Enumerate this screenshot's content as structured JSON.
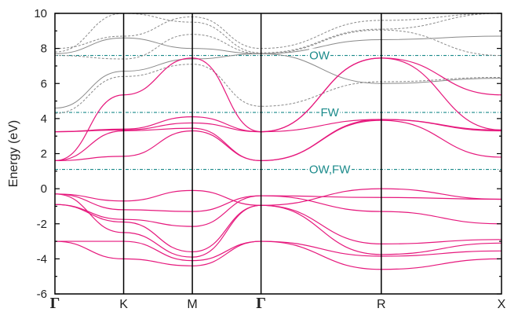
{
  "chart_data": {
    "type": "line",
    "xlabel": "",
    "ylabel": "Energy (eV)",
    "ylim": [
      -6,
      10
    ],
    "yticks": [
      "10",
      "8",
      "6",
      "4",
      "2",
      "0",
      "-2",
      "-4",
      "-6"
    ],
    "kpoints": [
      {
        "label": "Γ",
        "x": 0
      },
      {
        "label": "K",
        "x": 1
      },
      {
        "label": "M",
        "x": 2
      },
      {
        "label": "Γ",
        "x": 3
      },
      {
        "label": "R",
        "x": 4.75
      },
      {
        "label": "X",
        "x": 6.5
      }
    ],
    "colors": {
      "valence_conduction": "#e6197d",
      "upper_bands": "#8a8a8a",
      "levels": "#1a8a8a",
      "axis": "#000000"
    },
    "levels": [
      {
        "name": "OW",
        "y": 7.6
      },
      {
        "name": "FW",
        "y": 4.35
      },
      {
        "name": "OW,FW",
        "y": 1.1
      }
    ],
    "pink_bands": [
      {
        "name": "",
        "x": [
          0,
          1,
          2,
          3,
          4.75,
          6.5
        ],
        "y": [
          -3.0,
          -4.0,
          -4.4,
          -3.0,
          -4.6,
          -4.0
        ]
      },
      {
        "name": "",
        "x": [
          0,
          1,
          2,
          3,
          4.75,
          6.5
        ],
        "y": [
          -3.0,
          -3.0,
          -4.1,
          -3.0,
          -3.85,
          -3.55
        ]
      },
      {
        "name": "",
        "x": [
          0,
          1,
          2,
          3,
          4.75,
          6.5
        ],
        "y": [
          -0.3,
          -2.5,
          -3.9,
          -0.95,
          -3.75,
          -3.1
        ]
      },
      {
        "name": "",
        "x": [
          0,
          1,
          2,
          3,
          4.75,
          6.5
        ],
        "y": [
          -0.9,
          -1.9,
          -3.6,
          -0.95,
          -3.15,
          -2.9
        ]
      },
      {
        "name": "",
        "x": [
          0,
          1,
          2,
          3,
          4.75,
          6.5
        ],
        "y": [
          -0.9,
          -1.75,
          -2.15,
          -0.4,
          -1.3,
          -2.0
        ]
      },
      {
        "name": "",
        "x": [
          0,
          1,
          2,
          3,
          4.75,
          6.5
        ],
        "y": [
          -0.3,
          -1.2,
          -1.3,
          -0.4,
          -0.5,
          -0.6
        ]
      },
      {
        "name": "",
        "x": [
          0,
          1,
          2,
          3,
          4.75,
          6.5
        ],
        "y": [
          -0.3,
          -0.7,
          -0.1,
          -0.95,
          0.0,
          -0.6
        ]
      },
      {
        "name": "",
        "x": [
          0,
          1,
          2,
          3,
          4.75,
          6.5
        ],
        "y": [
          1.6,
          1.85,
          3.3,
          1.6,
          3.9,
          1.8
        ]
      },
      {
        "name": "",
        "x": [
          0,
          1,
          2,
          3,
          4.75,
          6.5
        ],
        "y": [
          1.6,
          3.3,
          3.45,
          1.6,
          3.95,
          3.3
        ]
      },
      {
        "name": "",
        "x": [
          0,
          1,
          2,
          3,
          4.75,
          6.5
        ],
        "y": [
          3.25,
          3.35,
          3.75,
          3.25,
          3.95,
          3.35
        ]
      },
      {
        "name": "",
        "x": [
          0,
          1,
          2,
          3,
          4.75,
          6.5
        ],
        "y": [
          3.25,
          3.4,
          4.1,
          3.25,
          7.45,
          3.35
        ]
      },
      {
        "name": "",
        "x": [
          0,
          1,
          2,
          3,
          4.75,
          6.5
        ],
        "y": [
          1.6,
          5.35,
          7.45,
          3.25,
          7.45,
          5.35
        ]
      }
    ],
    "grey_bands": [
      {
        "name": "",
        "x": [
          0,
          1,
          2,
          3,
          4.75,
          6.5
        ],
        "y": [
          4.3,
          6.4,
          7.1,
          4.7,
          6.1,
          6.35
        ]
      },
      {
        "name": "",
        "x": [
          0,
          1,
          2,
          3,
          4.75,
          6.5
        ],
        "y": [
          4.6,
          6.7,
          7.4,
          7.7,
          6.0,
          6.3
        ]
      },
      {
        "name": "",
        "x": [
          0,
          1,
          2,
          3,
          4.75,
          6.5
        ],
        "y": [
          7.6,
          7.4,
          8.8,
          7.7,
          9.05,
          7.6
        ]
      },
      {
        "name": "",
        "x": [
          0,
          1,
          2,
          3,
          4.75,
          6.5
        ],
        "y": [
          7.7,
          8.6,
          8.0,
          7.7,
          8.5,
          8.7
        ]
      },
      {
        "name": "",
        "x": [
          0,
          1,
          2,
          3,
          4.75,
          6.5
        ],
        "y": [
          7.8,
          10.0,
          9.5,
          7.75,
          9.1,
          10.0
        ]
      },
      {
        "name": "",
        "x": [
          0,
          1,
          2,
          3,
          4.75,
          6.5
        ],
        "y": [
          8.0,
          8.7,
          9.8,
          8.0,
          9.6,
          10.0
        ]
      }
    ]
  }
}
